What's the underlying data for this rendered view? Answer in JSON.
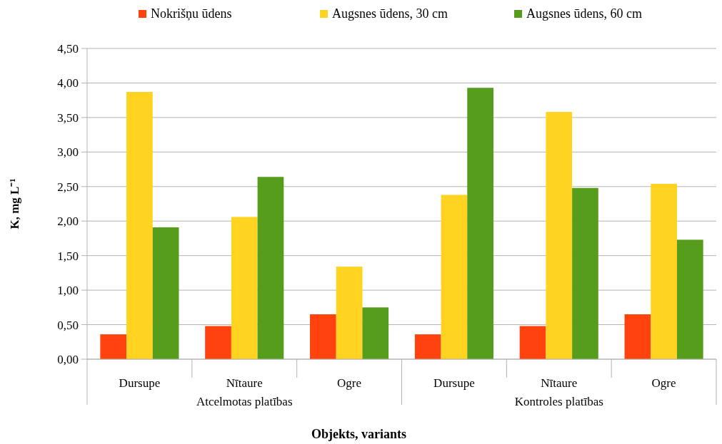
{
  "chart_data": {
    "type": "bar",
    "xlabel": "Objekts, variants",
    "ylabel": "K, mg L⁻¹",
    "categories": [
      "Dursupe",
      "Nītaure",
      "Ogre",
      "Dursupe",
      "Nītaure",
      "Ogre"
    ],
    "annotations": [
      "Atcelmotas platības",
      "Kontroles platības"
    ],
    "series": [
      {
        "name": "Nokrišņu ūdens",
        "color": "#ff420e",
        "values": [
          0.36,
          0.48,
          0.65,
          0.36,
          0.48,
          0.65
        ]
      },
      {
        "name": "Augsnes ūdens, 30 cm",
        "color": "#ffd320",
        "values": [
          3.87,
          2.06,
          1.34,
          2.38,
          3.58,
          2.54
        ]
      },
      {
        "name": "Augsnes ūdens, 60 cm",
        "color": "#579d1c",
        "values": [
          1.91,
          2.64,
          0.75,
          3.93,
          2.48,
          1.73
        ]
      }
    ],
    "ylim": [
      0,
      4.5
    ],
    "yticks": [
      {
        "value": 0,
        "label": "0,00"
      },
      {
        "value": 0.5,
        "label": "0,50"
      },
      {
        "value": 1,
        "label": "1,00"
      },
      {
        "value": 1.5,
        "label": "1,50"
      },
      {
        "value": 2,
        "label": "2,00"
      },
      {
        "value": 2.5,
        "label": "2,50"
      },
      {
        "value": 3,
        "label": "3,00"
      },
      {
        "value": 3.5,
        "label": "3,50"
      },
      {
        "value": 4,
        "label": "4,00"
      },
      {
        "value": 4.5,
        "label": "4,50"
      }
    ],
    "grid": "y",
    "legend": "top"
  }
}
